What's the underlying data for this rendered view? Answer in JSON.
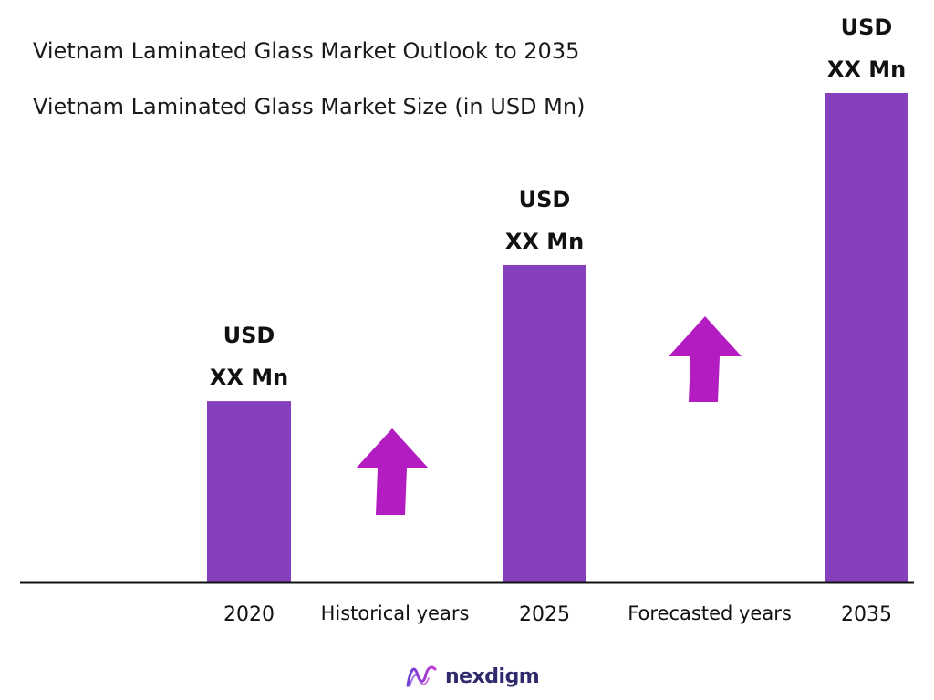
{
  "chart_data": {
    "type": "bar",
    "title": "Vietnam Laminated Glass Market Outlook to 2035",
    "subtitle": "Vietnam Laminated Glass Market Size (in USD Mn)",
    "categories": [
      "2020",
      "2025",
      "2035"
    ],
    "values": [
      100,
      175,
      270
    ],
    "value_labels": [
      [
        "USD",
        "XX Mn"
      ],
      [
        "USD",
        "XX Mn"
      ],
      [
        "USD",
        "XX Mn"
      ]
    ],
    "period_labels": [
      "Historical years",
      "Forecasted years"
    ],
    "colors": {
      "bar": "#8640BD",
      "arrow": "#B31CC0",
      "axis": "#111111"
    },
    "ylim": [
      0,
      270
    ],
    "grid": false,
    "legend": "none"
  },
  "brand": {
    "name": "nexdigm",
    "icon": "nexdigm-logo-icon"
  }
}
